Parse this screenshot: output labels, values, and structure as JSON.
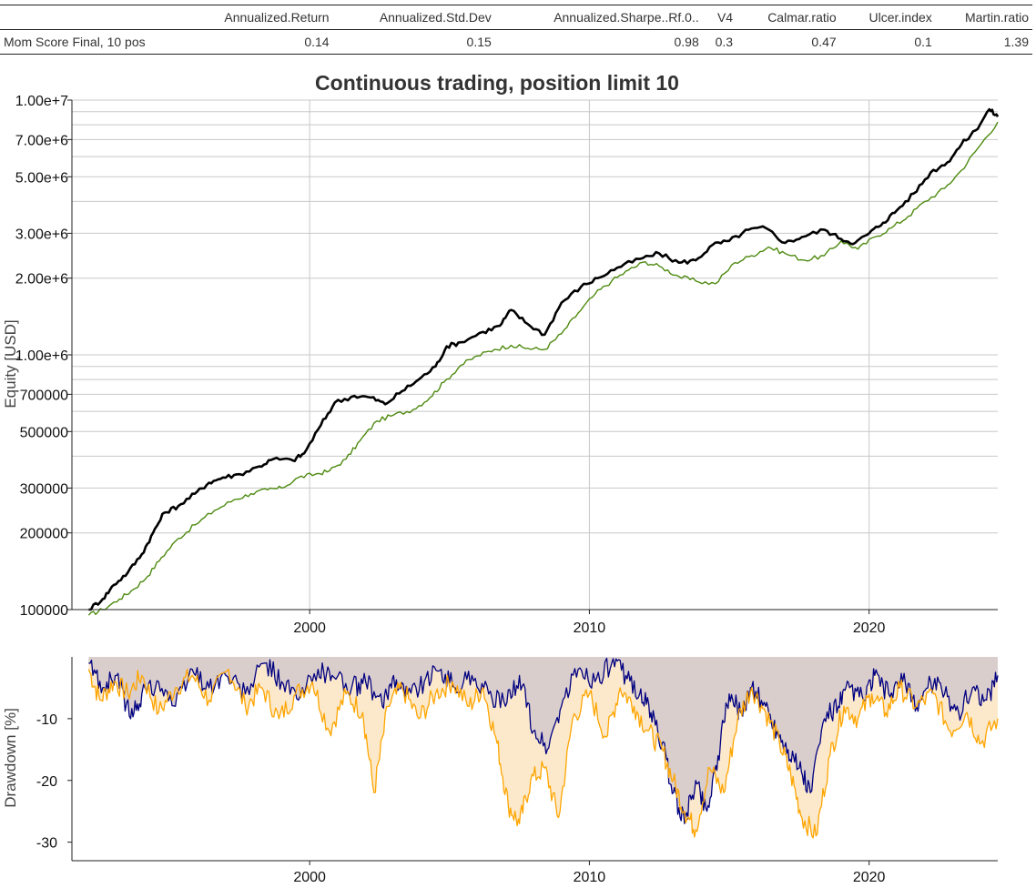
{
  "stats_table": {
    "columns": [
      "",
      "Annualized.Return",
      "Annualized.Std.Dev",
      "Annualized.Sharpe..Rf.0..",
      "V4",
      "Calmar.ratio",
      "Ulcer.index",
      "Martin.ratio"
    ],
    "rows": [
      {
        "name": "Mom Score Final, 10 pos",
        "values": [
          "0.14",
          "0.15",
          "0.98",
          "0.3",
          "0.47",
          "0.1",
          "1.39"
        ]
      }
    ]
  },
  "chart_data": [
    {
      "type": "line",
      "title": "Continuous trading, position limit 10",
      "xlabel": "",
      "ylabel": "Equity [USD]",
      "yscale": "log",
      "xlim": [
        1991.5,
        2024.6
      ],
      "ylim": [
        100000,
        10000000
      ],
      "x_ticks": [
        2000,
        2010,
        2020
      ],
      "y_tick_labels": [
        {
          "value": 100000,
          "label": "100000"
        },
        {
          "value": 200000,
          "label": "200000"
        },
        {
          "value": 300000,
          "label": "300000"
        },
        {
          "value": 500000,
          "label": "500000"
        },
        {
          "value": 700000,
          "label": "700000"
        },
        {
          "value": 1000000,
          "label": "1.00e+6"
        },
        {
          "value": 2000000,
          "label": "2.00e+6"
        },
        {
          "value": 3000000,
          "label": "3.00e+6"
        },
        {
          "value": 5000000,
          "label": "5.00e+6"
        },
        {
          "value": 7000000,
          "label": "7.00e+6"
        },
        {
          "value": 10000000,
          "label": "1.00e+7"
        }
      ],
      "y_gridlines": [
        100000,
        200000,
        300000,
        400000,
        500000,
        600000,
        700000,
        800000,
        900000,
        1000000,
        2000000,
        3000000,
        4000000,
        5000000,
        6000000,
        7000000,
        8000000,
        9000000,
        10000000
      ],
      "grid": true,
      "series": [
        {
          "color": "#000000",
          "width": 2.6,
          "x": [
            1992.1,
            1992.6,
            1993.0,
            1993.5,
            1994.0,
            1994.4,
            1994.8,
            1995.3,
            1995.9,
            1996.4,
            1996.9,
            1997.5,
            1998.2,
            1998.7,
            1999.4,
            1999.8,
            2000.4,
            2000.9,
            2001.6,
            2002.2,
            2002.7,
            2003.3,
            2003.9,
            2004.5,
            2004.9,
            2005.4,
            2006.2,
            2006.8,
            2007.2,
            2007.8,
            2008.4,
            2009.0,
            2009.7,
            2010.3,
            2011.0,
            2011.8,
            2012.5,
            2013.2,
            2013.8,
            2014.4,
            2015.0,
            2015.7,
            2016.3,
            2017.0,
            2017.6,
            2018.4,
            2019.0,
            2019.5,
            2020.0,
            2020.5,
            2021.0,
            2021.6,
            2022.2,
            2022.8,
            2023.3,
            2023.8,
            2024.3,
            2024.6
          ],
          "y": [
            100000,
            110000,
            125000,
            140000,
            165000,
            200000,
            240000,
            255000,
            285000,
            315000,
            330000,
            340000,
            365000,
            390000,
            385000,
            410000,
            530000,
            650000,
            690000,
            680000,
            640000,
            720000,
            800000,
            900000,
            1080000,
            1120000,
            1230000,
            1300000,
            1500000,
            1320000,
            1200000,
            1600000,
            1850000,
            2000000,
            2200000,
            2380000,
            2500000,
            2300000,
            2350000,
            2700000,
            2800000,
            3100000,
            3150000,
            2750000,
            2900000,
            3100000,
            2850000,
            2750000,
            3000000,
            3300000,
            3700000,
            4300000,
            5200000,
            5700000,
            6700000,
            7600000,
            9200000,
            8600000
          ]
        },
        {
          "color": "#4d8a0f",
          "width": 1.4,
          "x": [
            1992.1,
            1992.6,
            1993.2,
            1993.7,
            1994.2,
            1994.7,
            1995.3,
            1995.9,
            1996.6,
            1997.3,
            1997.9,
            1998.5,
            1999.0,
            1999.6,
            2000.2,
            2000.7,
            2001.3,
            2001.8,
            2002.4,
            2003.0,
            2003.7,
            2004.3,
            2004.8,
            2005.4,
            2006.0,
            2006.6,
            2007.2,
            2007.8,
            2008.4,
            2009.0,
            2009.6,
            2010.2,
            2010.8,
            2011.4,
            2012.0,
            2012.6,
            2013.2,
            2013.8,
            2014.5,
            2015.2,
            2015.8,
            2016.4,
            2017.0,
            2017.7,
            2018.4,
            2019.0,
            2019.6,
            2020.2,
            2020.8,
            2021.4,
            2022.0,
            2022.7,
            2023.3,
            2023.9,
            2024.6
          ],
          "y": [
            95000,
            100000,
            110000,
            120000,
            135000,
            160000,
            190000,
            215000,
            245000,
            270000,
            285000,
            295000,
            300000,
            330000,
            340000,
            350000,
            390000,
            460000,
            550000,
            580000,
            610000,
            680000,
            780000,
            910000,
            990000,
            1050000,
            1090000,
            1060000,
            1050000,
            1210000,
            1460000,
            1730000,
            1950000,
            2150000,
            2320000,
            2200000,
            2030000,
            1950000,
            1900000,
            2300000,
            2450000,
            2650000,
            2500000,
            2350000,
            2450000,
            2800000,
            2600000,
            2900000,
            3150000,
            3500000,
            4000000,
            4500000,
            5300000,
            6500000,
            8200000
          ]
        }
      ]
    },
    {
      "type": "area",
      "title": "",
      "xlabel": "",
      "ylabel": "Drawdown [%]",
      "xlim": [
        1991.5,
        2024.6
      ],
      "ylim": [
        -33,
        0
      ],
      "x_ticks": [
        2000,
        2010,
        2020
      ],
      "y_ticks": [
        -10,
        -20,
        -30
      ],
      "grid": false,
      "series": [
        {
          "color": "#000080",
          "fill": "#d8cccc",
          "x": [
            1992.1,
            1992.6,
            1993.1,
            1993.6,
            1994.0,
            1994.6,
            1995.2,
            1995.8,
            1996.4,
            1997.0,
            1997.7,
            1998.4,
            1999.0,
            1999.6,
            2000.3,
            2000.8,
            2001.5,
            2002.0,
            2002.6,
            2003.0,
            2003.5,
            2004.1,
            2004.7,
            2005.2,
            2005.8,
            2006.4,
            2007.0,
            2007.5,
            2008.0,
            2008.5,
            2009.0,
            2009.6,
            2010.2,
            2010.8,
            2011.3,
            2011.8,
            2012.2,
            2012.6,
            2013.0,
            2013.4,
            2013.8,
            2014.2,
            2014.6,
            2015.0,
            2015.4,
            2015.8,
            2016.3,
            2016.7,
            2017.1,
            2017.5,
            2017.9,
            2018.4,
            2018.9,
            2019.3,
            2019.8,
            2020.2,
            2020.7,
            2021.2,
            2021.7,
            2022.2,
            2022.7,
            2023.2,
            2023.7,
            2024.2,
            2024.6
          ],
          "y": [
            -1,
            -5,
            -3,
            -10,
            -6,
            -4,
            -8,
            -2,
            -5,
            -3,
            -6,
            -1,
            -4,
            -7,
            -2,
            -3,
            -5,
            -4,
            -8,
            -3,
            -6,
            -4,
            -2,
            -5,
            -3,
            -6,
            -8,
            -3,
            -12,
            -15,
            -8,
            -2,
            -4,
            -1,
            -3,
            -6,
            -9,
            -14,
            -22,
            -27,
            -20,
            -25,
            -16,
            -6,
            -9,
            -5,
            -8,
            -12,
            -15,
            -18,
            -22,
            -10,
            -8,
            -5,
            -7,
            -3,
            -6,
            -4,
            -8,
            -4,
            -6,
            -9,
            -5,
            -7,
            -3
          ]
        },
        {
          "color": "#ffa500",
          "fill": "#fce8c8",
          "x": [
            1992.1,
            1992.5,
            1993.0,
            1993.5,
            1994.0,
            1994.6,
            1995.2,
            1995.8,
            1996.4,
            1997.1,
            1997.7,
            1998.3,
            1998.9,
            1999.5,
            2000.1,
            2000.7,
            2001.3,
            2001.9,
            2002.3,
            2002.8,
            2003.3,
            2003.9,
            2004.5,
            2005.1,
            2005.7,
            2006.2,
            2006.7,
            2007.1,
            2007.5,
            2007.9,
            2008.4,
            2008.9,
            2009.4,
            2010.0,
            2010.6,
            2011.1,
            2011.6,
            2012.1,
            2012.6,
            2013.0,
            2013.4,
            2013.8,
            2014.3,
            2014.8,
            2015.3,
            2015.8,
            2016.3,
            2016.8,
            2017.2,
            2017.6,
            2018.1,
            2018.6,
            2019.1,
            2019.6,
            2020.1,
            2020.6,
            2021.1,
            2021.7,
            2022.3,
            2022.9,
            2023.5,
            2024.0,
            2024.6
          ],
          "y": [
            -2,
            -7,
            -4,
            -6,
            -3,
            -9,
            -5,
            -3,
            -7,
            -2,
            -8,
            -5,
            -10,
            -6,
            -4,
            -12,
            -6,
            -9,
            -22,
            -8,
            -5,
            -10,
            -6,
            -4,
            -8,
            -5,
            -14,
            -24,
            -27,
            -20,
            -18,
            -26,
            -10,
            -6,
            -13,
            -5,
            -8,
            -12,
            -15,
            -20,
            -25,
            -28,
            -18,
            -22,
            -10,
            -5,
            -9,
            -14,
            -19,
            -26,
            -29,
            -16,
            -8,
            -10,
            -6,
            -9,
            -5,
            -8,
            -6,
            -12,
            -9,
            -14,
            -10
          ]
        }
      ]
    }
  ]
}
